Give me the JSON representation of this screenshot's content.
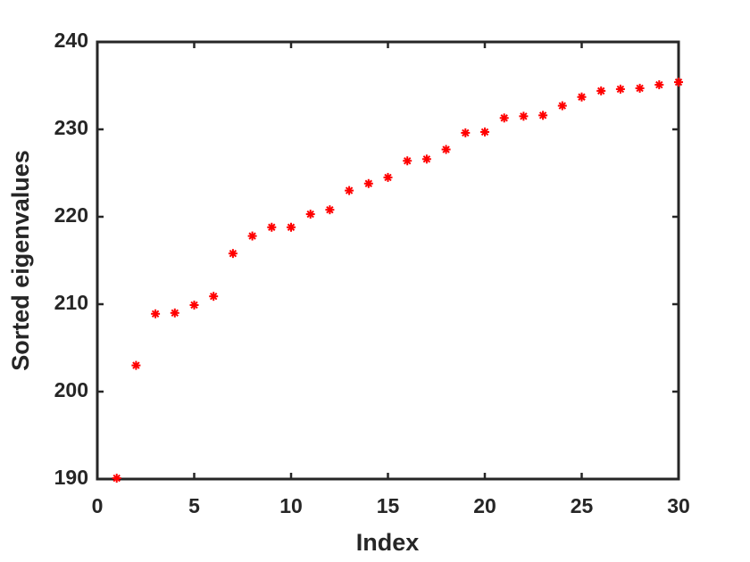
{
  "chart_data": {
    "type": "scatter",
    "x_label": "Index",
    "y_label": "Sorted eigenvalues",
    "x": [
      1,
      2,
      3,
      4,
      5,
      6,
      7,
      8,
      9,
      10,
      11,
      12,
      13,
      14,
      15,
      16,
      17,
      18,
      19,
      20,
      21,
      22,
      23,
      24,
      25,
      26,
      27,
      28,
      29,
      30
    ],
    "values": [
      190.1,
      203.0,
      208.9,
      209.0,
      209.9,
      210.9,
      215.8,
      217.8,
      218.8,
      218.8,
      220.3,
      220.8,
      223.0,
      223.8,
      224.5,
      226.4,
      226.6,
      227.7,
      229.6,
      229.7,
      231.3,
      231.5,
      231.6,
      232.7,
      233.7,
      234.4,
      234.6,
      234.7,
      235.1,
      235.4
    ],
    "color": "#ff0000",
    "xlim": [
      0,
      30
    ],
    "xticks": [
      0,
      5,
      10,
      15,
      20,
      25,
      30
    ],
    "ylim": [
      190,
      240
    ],
    "yticks": [
      190,
      200,
      210,
      220,
      230,
      240
    ],
    "grid": false
  }
}
